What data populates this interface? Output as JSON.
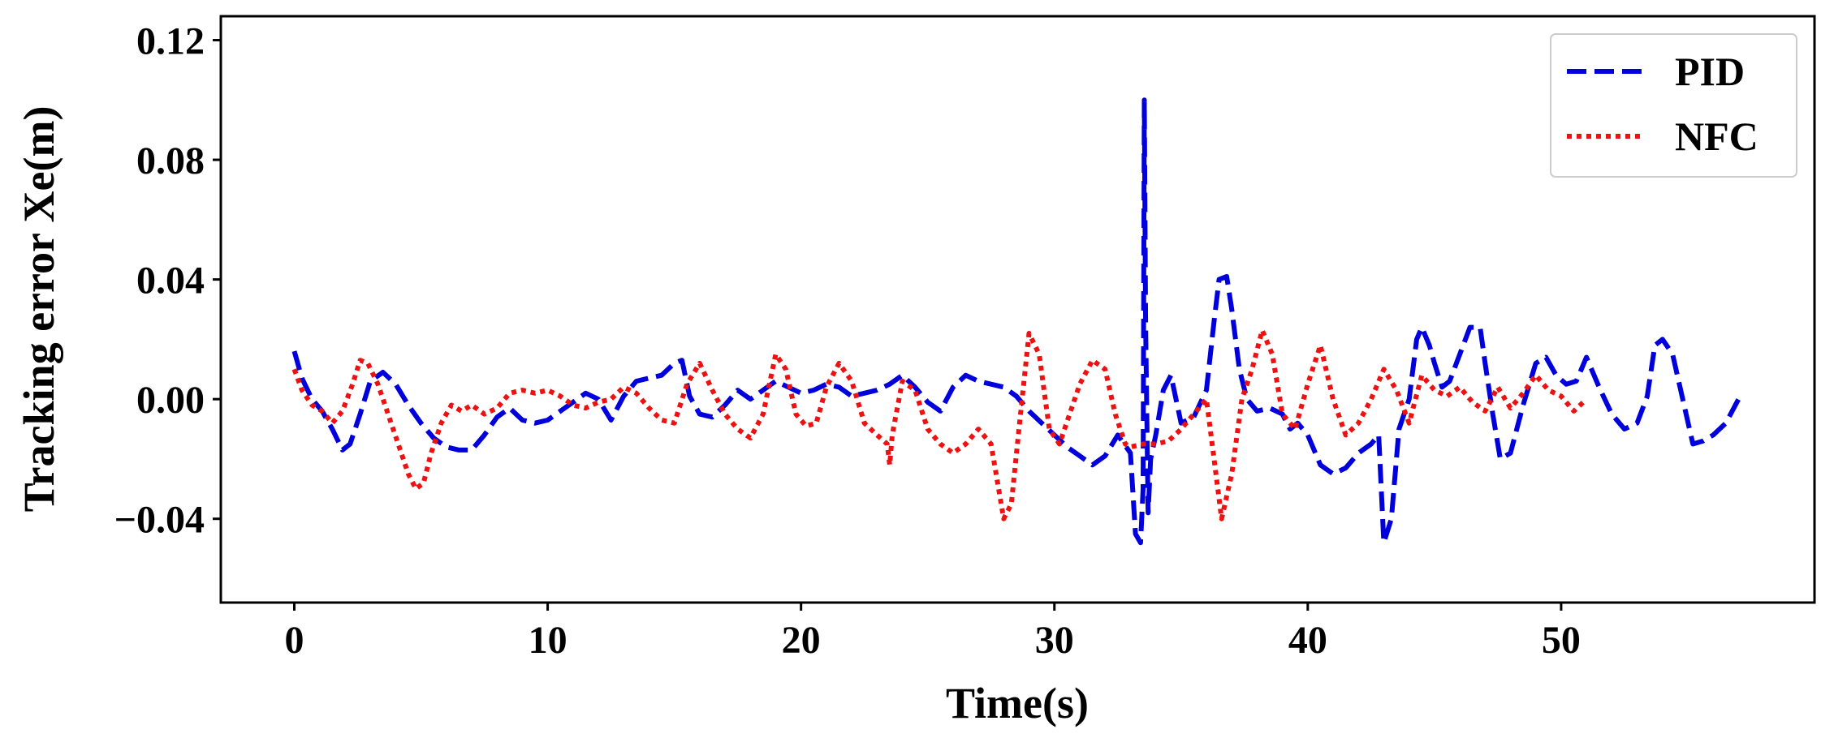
{
  "chart_data": {
    "type": "line",
    "title": "",
    "xlabel": "Time(s)",
    "ylabel": "Tracking error Xe(m)",
    "xlim": [
      -2.9,
      60
    ],
    "ylim": [
      -0.068,
      0.128
    ],
    "xticks": [
      0,
      10,
      20,
      30,
      40,
      50
    ],
    "xtick_labels": [
      "0",
      "10",
      "20",
      "30",
      "40",
      "50"
    ],
    "yticks": [
      -0.04,
      0.0,
      0.04,
      0.08,
      0.12
    ],
    "ytick_labels": [
      "−0.04",
      "0.00",
      "0.04",
      "0.08",
      "0.12"
    ],
    "grid": false,
    "legend_position": "top-right",
    "series": [
      {
        "name": "PID",
        "color": "#0000dd",
        "style": "dashed",
        "x": [
          0.0,
          0.3,
          0.7,
          1.1,
          1.5,
          1.9,
          2.2,
          2.6,
          3.0,
          3.5,
          4.0,
          4.5,
          5.0,
          5.5,
          6.0,
          6.5,
          7.0,
          7.5,
          8.0,
          8.5,
          9.0,
          9.5,
          10.0,
          10.5,
          11.0,
          11.5,
          12.0,
          12.5,
          13.0,
          13.5,
          14.0,
          14.5,
          15.0,
          15.3,
          15.6,
          16.0,
          16.5,
          17.0,
          17.5,
          18.0,
          18.5,
          19.0,
          19.5,
          20.0,
          20.5,
          21.0,
          21.5,
          22.0,
          22.5,
          23.0,
          23.5,
          24.0,
          24.5,
          25.0,
          25.5,
          26.0,
          26.5,
          27.0,
          27.5,
          28.0,
          28.5,
          29.0,
          29.5,
          30.0,
          30.5,
          31.0,
          31.5,
          32.0,
          32.5,
          33.0,
          33.2,
          33.4,
          33.5,
          33.55,
          33.6,
          33.7,
          33.8,
          34.0,
          34.3,
          34.6,
          35.0,
          35.5,
          36.0,
          36.3,
          36.5,
          36.8,
          37.0,
          37.3,
          37.6,
          38.0,
          38.5,
          39.0,
          39.3,
          39.6,
          40.0,
          40.5,
          41.0,
          41.5,
          42.0,
          42.5,
          42.8,
          43.0,
          43.3,
          43.6,
          44.0,
          44.3,
          44.5,
          44.8,
          45.0,
          45.3,
          45.6,
          46.0,
          46.4,
          46.8,
          47.0,
          47.3,
          47.6,
          48.0,
          48.5,
          49.0,
          49.4,
          49.8,
          50.2,
          50.6,
          51.0,
          51.5,
          52.0,
          52.5,
          53.0,
          53.4,
          53.7,
          54.0,
          54.4,
          54.8,
          55.2,
          55.6,
          56.0,
          56.5,
          57.0
        ],
        "y": [
          0.016,
          0.007,
          0.0,
          -0.004,
          -0.01,
          -0.017,
          -0.015,
          -0.005,
          0.006,
          0.009,
          0.005,
          -0.002,
          -0.008,
          -0.013,
          -0.016,
          -0.017,
          -0.017,
          -0.012,
          -0.006,
          -0.003,
          -0.007,
          -0.008,
          -0.007,
          -0.004,
          -0.001,
          0.002,
          0.0,
          -0.007,
          0.001,
          0.006,
          0.007,
          0.008,
          0.012,
          0.013,
          0.001,
          -0.005,
          -0.006,
          -0.002,
          0.003,
          0.0,
          0.003,
          0.006,
          0.004,
          0.002,
          0.003,
          0.005,
          0.004,
          0.001,
          0.002,
          0.003,
          0.005,
          0.008,
          0.004,
          -0.001,
          -0.004,
          0.004,
          0.008,
          0.006,
          0.005,
          0.004,
          0.001,
          -0.004,
          -0.008,
          -0.012,
          -0.016,
          -0.019,
          -0.022,
          -0.019,
          -0.012,
          -0.018,
          -0.045,
          -0.048,
          -0.03,
          0.1,
          0.025,
          -0.038,
          -0.02,
          -0.012,
          0.003,
          0.008,
          -0.008,
          -0.006,
          0.003,
          0.026,
          0.04,
          0.041,
          0.03,
          0.01,
          0.0,
          -0.004,
          -0.003,
          -0.005,
          -0.01,
          -0.008,
          -0.012,
          -0.022,
          -0.025,
          -0.023,
          -0.018,
          -0.015,
          -0.012,
          -0.048,
          -0.04,
          -0.01,
          0.0,
          0.02,
          0.024,
          0.018,
          0.012,
          0.004,
          0.006,
          0.015,
          0.024,
          0.024,
          0.012,
          -0.005,
          -0.02,
          -0.018,
          -0.002,
          0.012,
          0.014,
          0.008,
          0.005,
          0.006,
          0.014,
          0.004,
          -0.005,
          -0.01,
          -0.008,
          0.001,
          0.018,
          0.02,
          0.015,
          0.0,
          -0.015,
          -0.014,
          -0.012,
          -0.008,
          0.0
        ]
      },
      {
        "name": "NFC",
        "color": "#ee1111",
        "style": "dotted",
        "x": [
          0.0,
          0.3,
          0.7,
          1.1,
          1.5,
          1.9,
          2.3,
          2.6,
          2.9,
          3.3,
          3.7,
          4.1,
          4.5,
          4.8,
          5.1,
          5.4,
          5.8,
          6.2,
          6.6,
          7.0,
          7.5,
          8.0,
          8.5,
          9.0,
          9.5,
          10.0,
          10.5,
          11.0,
          11.5,
          12.0,
          12.5,
          13.0,
          13.5,
          14.0,
          14.5,
          15.0,
          15.5,
          16.0,
          16.5,
          17.0,
          17.5,
          18.0,
          18.5,
          19.0,
          19.4,
          19.8,
          20.2,
          20.6,
          21.0,
          21.5,
          22.0,
          22.5,
          23.0,
          23.4,
          23.5,
          23.6,
          24.0,
          24.5,
          25.0,
          25.5,
          26.0,
          26.5,
          27.0,
          27.5,
          28.0,
          28.3,
          28.6,
          29.0,
          29.4,
          29.8,
          30.2,
          30.6,
          31.0,
          31.5,
          32.0,
          32.4,
          32.8,
          33.0,
          33.5,
          34.0,
          34.5,
          35.0,
          35.5,
          36.0,
          36.3,
          36.6,
          37.0,
          37.4,
          37.8,
          38.2,
          38.6,
          39.0,
          39.5,
          40.0,
          40.5,
          41.0,
          41.5,
          42.0,
          42.5,
          43.0,
          43.5,
          44.0,
          44.5,
          45.0,
          45.5,
          46.0,
          46.5,
          47.0,
          47.5,
          48.0,
          48.5,
          49.0,
          49.5,
          50.0,
          50.5,
          51.0
        ],
        "y": [
          0.01,
          0.003,
          -0.002,
          -0.004,
          -0.008,
          -0.004,
          0.005,
          0.013,
          0.012,
          0.005,
          -0.005,
          -0.015,
          -0.025,
          -0.03,
          -0.028,
          -0.018,
          -0.008,
          -0.002,
          -0.004,
          -0.002,
          -0.005,
          -0.003,
          0.002,
          0.003,
          0.002,
          0.003,
          0.001,
          -0.002,
          -0.003,
          -0.001,
          0.0,
          0.004,
          0.002,
          -0.003,
          -0.007,
          -0.008,
          0.005,
          0.012,
          0.003,
          -0.005,
          -0.01,
          -0.013,
          -0.005,
          0.015,
          0.01,
          -0.005,
          -0.009,
          -0.008,
          0.004,
          0.012,
          0.006,
          -0.008,
          -0.012,
          -0.015,
          -0.022,
          -0.012,
          0.006,
          0.003,
          -0.01,
          -0.015,
          -0.018,
          -0.015,
          -0.01,
          -0.015,
          -0.04,
          -0.035,
          -0.01,
          0.022,
          0.015,
          -0.01,
          -0.015,
          -0.005,
          0.005,
          0.013,
          0.01,
          -0.005,
          -0.015,
          -0.016,
          -0.015,
          -0.015,
          -0.014,
          -0.01,
          -0.005,
          0.0,
          -0.02,
          -0.04,
          -0.025,
          0.0,
          0.01,
          0.023,
          0.015,
          -0.005,
          -0.01,
          0.005,
          0.018,
          0.0,
          -0.012,
          -0.008,
          0.0,
          0.01,
          0.003,
          -0.008,
          0.008,
          0.003,
          0.001,
          0.004,
          -0.001,
          -0.004,
          0.004,
          -0.003,
          0.002,
          0.008,
          0.003,
          0.001,
          -0.004,
          0.0
        ]
      }
    ]
  }
}
